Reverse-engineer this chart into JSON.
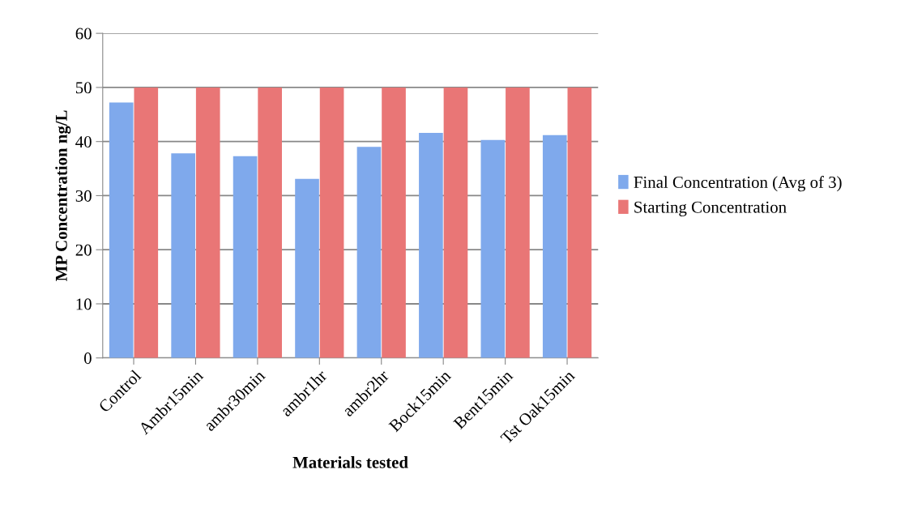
{
  "chart_data": {
    "type": "bar",
    "xlabel": "Materials tested",
    "ylabel": "MP Concentration ng/L",
    "categories": [
      "Control",
      "Ambr15min",
      "ambr30min",
      "ambr1hr",
      "ambr2hr",
      "Bock15min",
      "Bent15min",
      "Tst Oak15min"
    ],
    "series": [
      {
        "name": "Final Concentration (Avg of 3)",
        "color": "#7fa9ec",
        "values": [
          47.2,
          37.8,
          37.3,
          33.1,
          39.0,
          41.6,
          40.3,
          41.2
        ]
      },
      {
        "name": "Starting Concentration",
        "color": "#e97676",
        "values": [
          50,
          50,
          50,
          50,
          50,
          50,
          50,
          50
        ]
      }
    ],
    "ylim": [
      0,
      60
    ],
    "yticks": [
      0,
      10,
      20,
      30,
      40,
      50,
      60
    ],
    "grid": "y",
    "legend": "right"
  }
}
